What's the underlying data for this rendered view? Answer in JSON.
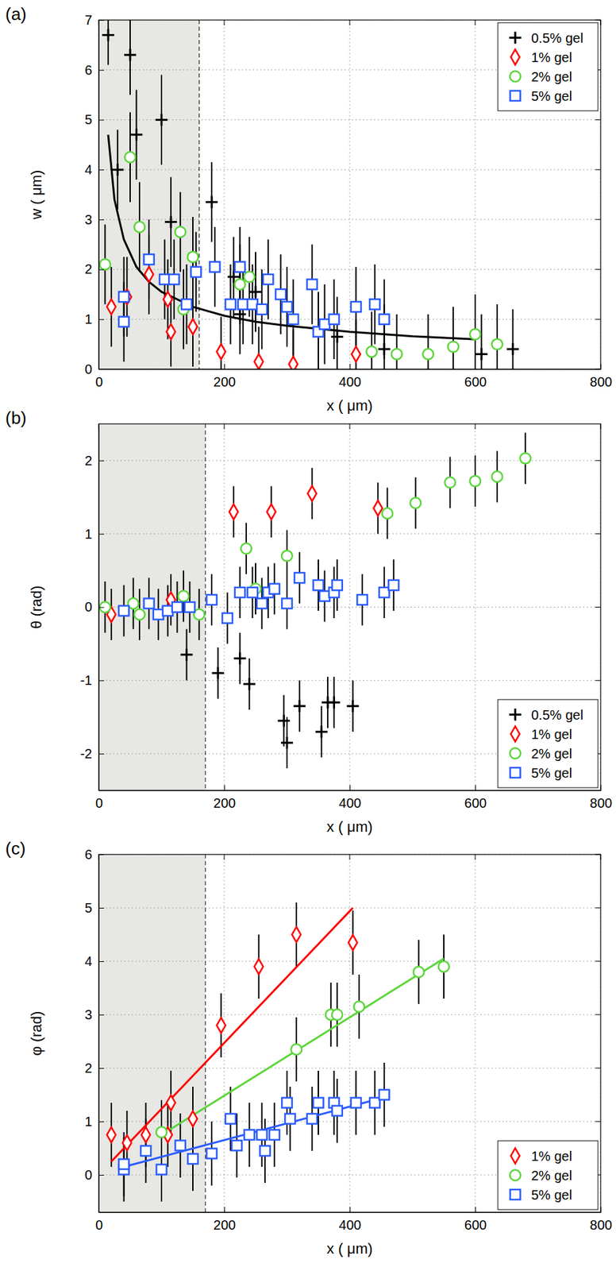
{
  "chart_data": [
    {
      "type": "scatter",
      "title": "(a)",
      "x_label": "x ( μm)",
      "y_label": "w ( μm)",
      "xlim": [
        0,
        800
      ],
      "xticks": [
        0,
        200,
        400,
        600,
        800
      ],
      "ylim": [
        0,
        7
      ],
      "yticks": [
        0,
        1,
        2,
        3,
        4,
        5,
        6,
        7
      ],
      "grid": true,
      "legend": "upper right",
      "shaded_region": [
        0,
        160
      ],
      "series": [
        {
          "name": "0.5% gel",
          "color": "#000000",
          "marker": "plus",
          "x": [
            15,
            30,
            50,
            60,
            100,
            115,
            180,
            215,
            225,
            250,
            380,
            455,
            610,
            660
          ],
          "values": [
            6.7,
            4.0,
            6.3,
            4.7,
            5.0,
            2.95,
            3.35,
            1.85,
            1.1,
            1.55,
            0.65,
            0.4,
            0.3,
            0.4
          ],
          "errors": [
            0.6,
            0.8,
            0.8,
            0.9,
            0.9,
            0.9,
            0.8,
            0.8,
            0.8,
            0.8,
            0.8,
            0.9,
            0.8,
            0.8
          ]
        },
        {
          "name": "1% gel",
          "color": "#ff0000",
          "marker": "diamond",
          "x": [
            20,
            45,
            80,
            110,
            115,
            150,
            195,
            255,
            310,
            410
          ],
          "values": [
            1.25,
            1.45,
            1.9,
            1.4,
            0.75,
            0.85,
            0.35,
            0.15,
            0.1,
            0.3
          ],
          "errors": [
            0.8,
            0.8,
            0.8,
            0.8,
            0.7,
            0.8,
            0.7,
            0.7,
            0.7,
            0.7
          ]
        },
        {
          "name": "2% gel",
          "color": "#5cd63c",
          "marker": "circle",
          "x": [
            10,
            50,
            65,
            130,
            135,
            150,
            225,
            240,
            435,
            475,
            525,
            565,
            600,
            635
          ],
          "values": [
            2.1,
            4.25,
            2.85,
            2.75,
            1.2,
            2.25,
            1.7,
            1.85,
            0.35,
            0.3,
            0.3,
            0.45,
            0.7,
            0.5
          ],
          "errors": [
            0.8,
            0.9,
            0.9,
            0.8,
            0.8,
            0.8,
            0.8,
            0.8,
            0.8,
            0.8,
            0.8,
            0.8,
            0.8,
            0.8
          ]
        },
        {
          "name": "5% gel",
          "color": "#2a5cff",
          "marker": "square",
          "x": [
            40,
            40,
            80,
            105,
            120,
            140,
            155,
            185,
            210,
            225,
            230,
            245,
            260,
            270,
            290,
            300,
            310,
            340,
            350,
            360,
            375,
            410,
            440,
            455
          ],
          "values": [
            0.95,
            1.45,
            2.2,
            1.8,
            1.8,
            1.3,
            1.95,
            2.05,
            1.3,
            2.05,
            1.3,
            1.3,
            1.2,
            1.8,
            1.5,
            1.25,
            1.0,
            1.7,
            0.75,
            0.9,
            1.0,
            1.25,
            1.3,
            1.0
          ],
          "errors": [
            0.8,
            0.8,
            0.8,
            0.8,
            0.8,
            0.8,
            0.8,
            0.8,
            0.8,
            0.8,
            0.8,
            0.8,
            0.8,
            0.8,
            0.8,
            0.8,
            0.8,
            0.8,
            0.8,
            0.8,
            0.8,
            0.8,
            0.8,
            0.8
          ]
        },
        {
          "type": "line",
          "color": "#000000",
          "line_style": "solid",
          "x": [
            15,
            25,
            40,
            60,
            80,
            100,
            150,
            200,
            250,
            300,
            400,
            500,
            600
          ],
          "values": [
            4.7,
            3.4,
            2.6,
            2.05,
            1.75,
            1.55,
            1.25,
            1.07,
            0.95,
            0.87,
            0.75,
            0.66,
            0.6
          ]
        }
      ]
    },
    {
      "type": "scatter",
      "title": "(b)",
      "x_label": "x ( μm)",
      "y_label": "θ (rad)",
      "xlim": [
        0,
        800
      ],
      "xticks": [
        0,
        200,
        400,
        600,
        800
      ],
      "ylim": [
        -2.5,
        2.5
      ],
      "yticks": [
        -2,
        -1,
        0,
        1,
        2
      ],
      "grid": true,
      "legend": "lower right",
      "shaded_region": [
        0,
        170
      ],
      "series": [
        {
          "name": "0.5% gel",
          "color": "#000000",
          "marker": "plus",
          "x": [
            140,
            190,
            225,
            240,
            295,
            300,
            320,
            355,
            365,
            375,
            405
          ],
          "values": [
            -0.65,
            -0.9,
            -0.7,
            -1.05,
            -1.55,
            -1.85,
            -1.35,
            -1.7,
            -1.3,
            -1.3,
            -1.35
          ],
          "errors": [
            0.35,
            0.35,
            0.35,
            0.35,
            0.35,
            0.35,
            0.35,
            0.35,
            0.35,
            0.35,
            0.35
          ]
        },
        {
          "name": "1% gel",
          "color": "#ff0000",
          "marker": "diamond",
          "x": [
            20,
            115,
            215,
            275,
            340,
            445
          ],
          "values": [
            -0.1,
            0.1,
            1.3,
            1.3,
            1.55,
            1.35
          ],
          "errors": [
            0.35,
            0.35,
            0.35,
            0.35,
            0.35,
            0.35
          ]
        },
        {
          "name": "2% gel",
          "color": "#5cd63c",
          "marker": "circle",
          "x": [
            10,
            55,
            65,
            135,
            160,
            235,
            250,
            300,
            460,
            505,
            560,
            600,
            635,
            680
          ],
          "values": [
            0,
            0.05,
            -0.1,
            0.15,
            -0.1,
            0.8,
            0.25,
            0.7,
            1.28,
            1.42,
            1.7,
            1.72,
            1.78,
            2.03
          ],
          "errors": [
            0.35,
            0.35,
            0.35,
            0.35,
            0.35,
            0.35,
            0.35,
            0.35,
            0.35,
            0.35,
            0.35,
            0.35,
            0.35,
            0.35
          ]
        },
        {
          "name": "5% gel",
          "color": "#2a5cff",
          "marker": "square",
          "x": [
            40,
            80,
            95,
            110,
            125,
            145,
            180,
            205,
            225,
            245,
            260,
            270,
            280,
            300,
            320,
            350,
            360,
            375,
            380,
            420,
            455,
            470
          ],
          "values": [
            -0.05,
            0.05,
            -0.1,
            -0.05,
            0,
            0,
            0.1,
            -0.15,
            0.2,
            0.2,
            0.05,
            0.2,
            0.25,
            0.05,
            0.4,
            0.3,
            0.15,
            0.2,
            0.3,
            0.1,
            0.2,
            0.3
          ],
          "errors": [
            0.35,
            0.35,
            0.35,
            0.35,
            0.35,
            0.35,
            0.35,
            0.35,
            0.35,
            0.35,
            0.35,
            0.35,
            0.35,
            0.35,
            0.35,
            0.35,
            0.35,
            0.35,
            0.35,
            0.35,
            0.35,
            0.35
          ]
        }
      ]
    },
    {
      "type": "scatter",
      "title": "(c)",
      "x_label": "x ( μm)",
      "y_label": "φ (rad)",
      "xlim": [
        0,
        800
      ],
      "xticks": [
        0,
        200,
        400,
        600,
        800
      ],
      "ylim": [
        -0.7,
        6
      ],
      "yticks": [
        0,
        1,
        2,
        3,
        4,
        5,
        6
      ],
      "grid": true,
      "legend": "lower right",
      "shaded_region": [
        0,
        170
      ],
      "series": [
        {
          "name": "1% gel",
          "color": "#ff0000",
          "marker": "diamond",
          "x": [
            20,
            45,
            75,
            110,
            115,
            150,
            195,
            255,
            315,
            405
          ],
          "values": [
            0.75,
            0.6,
            0.75,
            0.75,
            1.35,
            1.05,
            2.8,
            3.9,
            4.5,
            4.35
          ],
          "errors": [
            0.6,
            0.6,
            0.6,
            0.6,
            0.6,
            0.6,
            0.6,
            0.6,
            0.6,
            0.6
          ]
        },
        {
          "name": "2% gel",
          "color": "#5cd63c",
          "marker": "circle",
          "x": [
            100,
            315,
            370,
            380,
            415,
            510,
            550
          ],
          "values": [
            0.8,
            2.35,
            3.0,
            3.0,
            3.15,
            3.8,
            3.9
          ],
          "errors": [
            0.6,
            0.6,
            0.6,
            0.6,
            0.6,
            0.6,
            0.6
          ]
        },
        {
          "name": "5% gel",
          "color": "#2a5cff",
          "marker": "square",
          "x": [
            40,
            40,
            75,
            100,
            130,
            150,
            180,
            210,
            220,
            240,
            260,
            265,
            280,
            300,
            305,
            340,
            350,
            375,
            380,
            410,
            440,
            455
          ],
          "values": [
            0.1,
            0.2,
            0.45,
            0.1,
            0.55,
            0.3,
            0.4,
            1.05,
            0.55,
            0.75,
            0.75,
            0.45,
            0.75,
            1.35,
            1.05,
            1.05,
            1.35,
            1.35,
            1.2,
            1.35,
            1.35,
            1.5
          ],
          "errors": [
            0.6,
            0.6,
            0.6,
            0.6,
            0.6,
            0.6,
            0.6,
            0.6,
            0.6,
            0.6,
            0.6,
            0.6,
            0.6,
            0.6,
            0.6,
            0.6,
            0.6,
            0.6,
            0.6,
            0.6,
            0.6,
            0.6
          ]
        },
        {
          "type": "line",
          "color": "#ff0000",
          "line_style": "solid",
          "x": [
            20,
            405
          ],
          "values": [
            0.25,
            5.0
          ]
        },
        {
          "type": "line",
          "color": "#5cd63c",
          "line_style": "solid",
          "x": [
            100,
            550
          ],
          "values": [
            0.75,
            4.05
          ]
        },
        {
          "type": "line",
          "color": "#2a5cff",
          "line_style": "solid",
          "x": [
            40,
            455
          ],
          "values": [
            0.15,
            1.45
          ]
        }
      ]
    }
  ]
}
